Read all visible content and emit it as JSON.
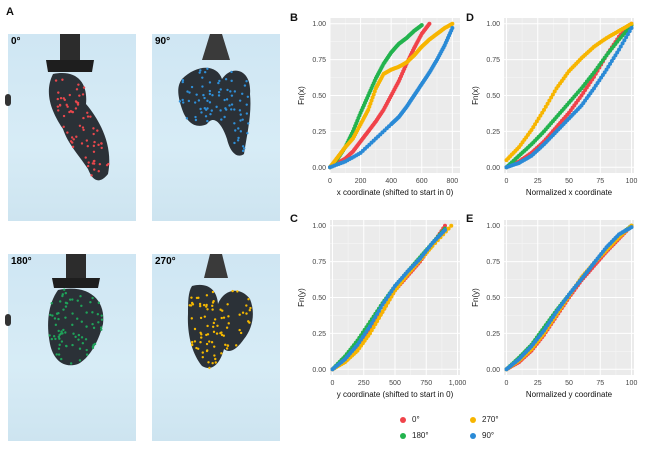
{
  "panel_a": {
    "letter": "A",
    "photos": [
      {
        "angle": "0°",
        "dot_color": "#e8474c"
      },
      {
        "angle": "90°",
        "dot_color": "#2f8fd8"
      },
      {
        "angle": "180°",
        "dot_color": "#1fa35a"
      },
      {
        "angle": "270°",
        "dot_color": "#f5b800"
      }
    ]
  },
  "colors": {
    "0°": "#f0434a",
    "90°": "#2a8ad6",
    "180°": "#23b34e",
    "270°": "#f7b500"
  },
  "legend": {
    "items": [
      {
        "label": "0°",
        "color": "#f0434a"
      },
      {
        "label": "270°",
        "color": "#f7b500"
      },
      {
        "label": "180°",
        "color": "#23b34e"
      },
      {
        "label": "90°",
        "color": "#2a8ad6"
      }
    ]
  },
  "chart_data": [
    {
      "panel": "B",
      "type": "scatter",
      "xlabel": "x coordinate (shifted to start in 0)",
      "ylabel": "Fn(x)",
      "xlim": [
        0,
        850
      ],
      "ylim": [
        0,
        1
      ],
      "xticks": [
        "0",
        "200",
        "400",
        "600",
        "800"
      ],
      "xtick_values": [
        0,
        200,
        400,
        600,
        800
      ],
      "yticks": [
        "0.00",
        "0.25",
        "0.50",
        "0.75",
        "1.00"
      ],
      "series": [
        {
          "name": "0°",
          "x": [
            0,
            50,
            100,
            150,
            200,
            250,
            300,
            350,
            400,
            450,
            500,
            550,
            600,
            650
          ],
          "y": [
            0,
            0.03,
            0.06,
            0.11,
            0.18,
            0.25,
            0.32,
            0.4,
            0.5,
            0.6,
            0.72,
            0.83,
            0.93,
            1.0
          ]
        },
        {
          "name": "90°",
          "x": [
            0,
            100,
            200,
            300,
            400,
            450,
            500,
            550,
            600,
            650,
            700,
            750,
            800
          ],
          "y": [
            0,
            0.04,
            0.1,
            0.2,
            0.3,
            0.35,
            0.42,
            0.5,
            0.58,
            0.66,
            0.75,
            0.85,
            0.97
          ]
        },
        {
          "name": "180°",
          "x": [
            0,
            50,
            100,
            150,
            200,
            250,
            300,
            350,
            400,
            450,
            500,
            550,
            600
          ],
          "y": [
            0,
            0.06,
            0.14,
            0.25,
            0.38,
            0.5,
            0.62,
            0.72,
            0.8,
            0.86,
            0.9,
            0.95,
            0.99
          ]
        },
        {
          "name": "270°",
          "x": [
            0,
            50,
            100,
            150,
            200,
            250,
            300,
            350,
            400,
            450,
            500,
            550,
            600,
            650,
            700,
            750,
            800
          ],
          "y": [
            0,
            0.07,
            0.14,
            0.2,
            0.3,
            0.4,
            0.55,
            0.65,
            0.68,
            0.7,
            0.73,
            0.78,
            0.84,
            0.89,
            0.93,
            0.97,
            1.0
          ]
        }
      ]
    },
    {
      "panel": "D",
      "type": "scatter",
      "xlabel": "Normalized x coordinate",
      "ylabel": "Fn(x)",
      "xlim": [
        -2,
        102
      ],
      "ylim": [
        0,
        1
      ],
      "xticks": [
        "0",
        "25",
        "50",
        "75",
        "100"
      ],
      "xtick_values": [
        0,
        25,
        50,
        75,
        100
      ],
      "yticks": [
        "0.00",
        "0.25",
        "0.50",
        "0.75",
        "1.00"
      ],
      "series": [
        {
          "name": "0°",
          "x": [
            0,
            10,
            20,
            30,
            40,
            50,
            60,
            70,
            80,
            90,
            100
          ],
          "y": [
            0,
            0.04,
            0.1,
            0.18,
            0.28,
            0.38,
            0.5,
            0.63,
            0.78,
            0.91,
            1.0
          ]
        },
        {
          "name": "90°",
          "x": [
            0,
            10,
            20,
            30,
            40,
            50,
            60,
            70,
            80,
            90,
            100
          ],
          "y": [
            0,
            0.03,
            0.08,
            0.16,
            0.25,
            0.34,
            0.43,
            0.55,
            0.68,
            0.82,
            0.97
          ]
        },
        {
          "name": "180°",
          "x": [
            0,
            10,
            20,
            30,
            40,
            50,
            60,
            70,
            80,
            90,
            100
          ],
          "y": [
            0,
            0.08,
            0.16,
            0.25,
            0.35,
            0.45,
            0.55,
            0.66,
            0.78,
            0.89,
            0.99
          ]
        },
        {
          "name": "270°",
          "x": [
            0,
            10,
            20,
            30,
            40,
            50,
            60,
            70,
            80,
            90,
            100
          ],
          "y": [
            0.05,
            0.14,
            0.26,
            0.4,
            0.55,
            0.67,
            0.76,
            0.84,
            0.9,
            0.95,
            1.0
          ]
        }
      ]
    },
    {
      "panel": "C",
      "type": "scatter",
      "xlabel": "y coordinate (shifted to start in 0)",
      "ylabel": "Fn(y)",
      "xlim": [
        -20,
        1020
      ],
      "ylim": [
        0,
        1
      ],
      "xticks": [
        "0",
        "250",
        "500",
        "750",
        "1,000"
      ],
      "xtick_values": [
        0,
        250,
        500,
        750,
        1000
      ],
      "yticks": [
        "0.00",
        "0.25",
        "0.50",
        "0.75",
        "1.00"
      ],
      "series": [
        {
          "name": "0°",
          "x": [
            0,
            100,
            200,
            300,
            400,
            500,
            600,
            700,
            800,
            900
          ],
          "y": [
            0,
            0.06,
            0.15,
            0.27,
            0.4,
            0.55,
            0.65,
            0.75,
            0.87,
            1.0
          ]
        },
        {
          "name": "90°",
          "x": [
            0,
            100,
            200,
            300,
            400,
            500,
            600,
            700,
            800,
            900
          ],
          "y": [
            0,
            0.07,
            0.17,
            0.3,
            0.45,
            0.58,
            0.68,
            0.77,
            0.88,
            0.97
          ]
        },
        {
          "name": "180°",
          "x": [
            0,
            100,
            200,
            300,
            400,
            500,
            600,
            700,
            800,
            900
          ],
          "y": [
            0,
            0.09,
            0.2,
            0.33,
            0.46,
            0.58,
            0.68,
            0.78,
            0.88,
            0.98
          ]
        },
        {
          "name": "270°",
          "x": [
            0,
            100,
            200,
            300,
            400,
            500,
            600,
            700,
            800,
            950
          ],
          "y": [
            0,
            0.05,
            0.13,
            0.25,
            0.4,
            0.55,
            0.66,
            0.76,
            0.86,
            1.0
          ]
        }
      ]
    },
    {
      "panel": "E",
      "type": "scatter",
      "xlabel": "Normalized y coordinate",
      "ylabel": "Fn(y)",
      "xlim": [
        -2,
        102
      ],
      "ylim": [
        0,
        1
      ],
      "xticks": [
        "0",
        "25",
        "50",
        "75",
        "100"
      ],
      "xtick_values": [
        0,
        25,
        50,
        75,
        100
      ],
      "yticks": [
        "0.00",
        "0.25",
        "0.50",
        "0.75",
        "1.00"
      ],
      "series": [
        {
          "name": "0°",
          "x": [
            0,
            10,
            20,
            30,
            40,
            50,
            60,
            70,
            80,
            90,
            100
          ],
          "y": [
            0,
            0.05,
            0.13,
            0.24,
            0.37,
            0.5,
            0.62,
            0.72,
            0.82,
            0.91,
            1.0
          ]
        },
        {
          "name": "90°",
          "x": [
            0,
            10,
            20,
            30,
            40,
            50,
            60,
            70,
            80,
            90,
            100
          ],
          "y": [
            0,
            0.07,
            0.16,
            0.27,
            0.4,
            0.52,
            0.63,
            0.74,
            0.85,
            0.94,
            0.99
          ]
        },
        {
          "name": "180°",
          "x": [
            0,
            10,
            20,
            30,
            40,
            50,
            60,
            70,
            80,
            90,
            100
          ],
          "y": [
            0,
            0.08,
            0.17,
            0.29,
            0.41,
            0.52,
            0.63,
            0.74,
            0.84,
            0.93,
            1.0
          ]
        },
        {
          "name": "270°",
          "x": [
            0,
            10,
            20,
            30,
            40,
            50,
            60,
            70,
            80,
            90,
            100
          ],
          "y": [
            0,
            0.06,
            0.14,
            0.25,
            0.38,
            0.51,
            0.64,
            0.74,
            0.83,
            0.92,
            1.0
          ]
        }
      ]
    }
  ]
}
